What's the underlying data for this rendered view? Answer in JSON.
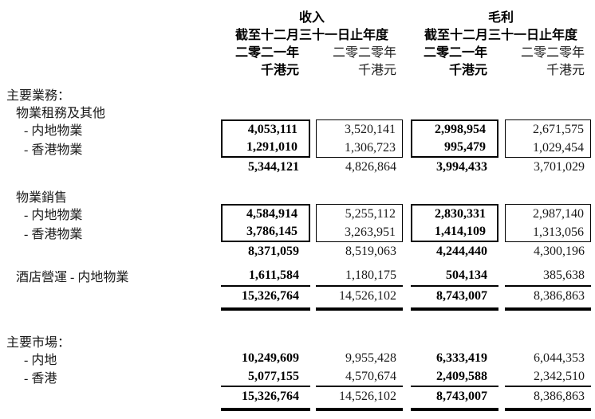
{
  "colors": {
    "background": "#ffffff",
    "text": "#000000"
  },
  "header": {
    "revenue_title": "收入",
    "gross_profit_title": "毛利",
    "period_label": "截至十二月三十一日止年度",
    "year_2021": "二零二一年",
    "year_2020": "二零二零年",
    "unit": "千港元"
  },
  "sections": {
    "business": {
      "title": "主要業務：",
      "leasing": {
        "title": "物業租務及其他",
        "mainland": {
          "label": "- 内地物業",
          "values": [
            "4,053,111",
            "3,520,141",
            "2,998,954",
            "2,671,575"
          ]
        },
        "hongkong": {
          "label": "- 香港物業",
          "values": [
            "1,291,010",
            "1,306,723",
            "995,479",
            "1,029,454"
          ]
        },
        "subtotal": [
          "5,344,121",
          "4,826,864",
          "3,994,433",
          "3,701,029"
        ]
      },
      "sales": {
        "title": "物業銷售",
        "mainland": {
          "label": "- 内地物業",
          "values": [
            "4,584,914",
            "5,255,112",
            "2,830,331",
            "2,987,140"
          ]
        },
        "hongkong": {
          "label": "- 香港物業",
          "values": [
            "3,786,145",
            "3,263,951",
            "1,414,109",
            "1,313,056"
          ]
        },
        "subtotal": [
          "8,371,059",
          "8,519,063",
          "4,244,440",
          "4,300,196"
        ]
      },
      "hotel": {
        "label": "酒店營運 - 内地物業",
        "values": [
          "1,611,584",
          "1,180,175",
          "504,134",
          "385,638"
        ]
      },
      "total": [
        "15,326,764",
        "14,526,102",
        "8,743,007",
        "8,386,863"
      ]
    },
    "market": {
      "title": "主要市場：",
      "mainland": {
        "label": "- 内地",
        "values": [
          "10,249,609",
          "9,955,428",
          "6,333,419",
          "6,044,353"
        ]
      },
      "hongkong": {
        "label": "- 香港",
        "values": [
          "5,077,155",
          "4,570,674",
          "2,409,588",
          "2,342,510"
        ]
      },
      "total": [
        "15,326,764",
        "14,526,102",
        "8,743,007",
        "8,386,863"
      ]
    }
  }
}
